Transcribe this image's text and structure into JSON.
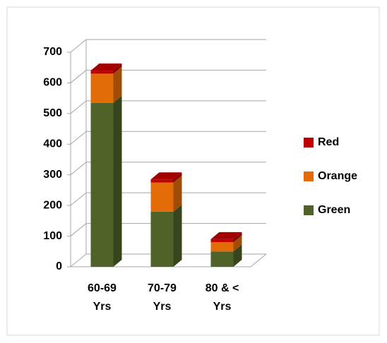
{
  "chart_data": {
    "type": "bar3d_stacked",
    "categories": [
      "60-69 Yrs",
      "70-79 Yrs",
      "80 & < Yrs"
    ],
    "series": [
      {
        "name": "Green",
        "color": "#4f6228",
        "values": [
          535,
          180,
          50
        ]
      },
      {
        "name": "Orange",
        "color": "#e36c09",
        "values": [
          95,
          95,
          30
        ]
      },
      {
        "name": "Red",
        "color": "#c00000",
        "values": [
          10,
          10,
          10
        ]
      }
    ],
    "ylim": [
      0,
      700
    ],
    "yticks": [
      0,
      100,
      200,
      300,
      400,
      500,
      600,
      700
    ],
    "grid": true,
    "legend": "right"
  }
}
